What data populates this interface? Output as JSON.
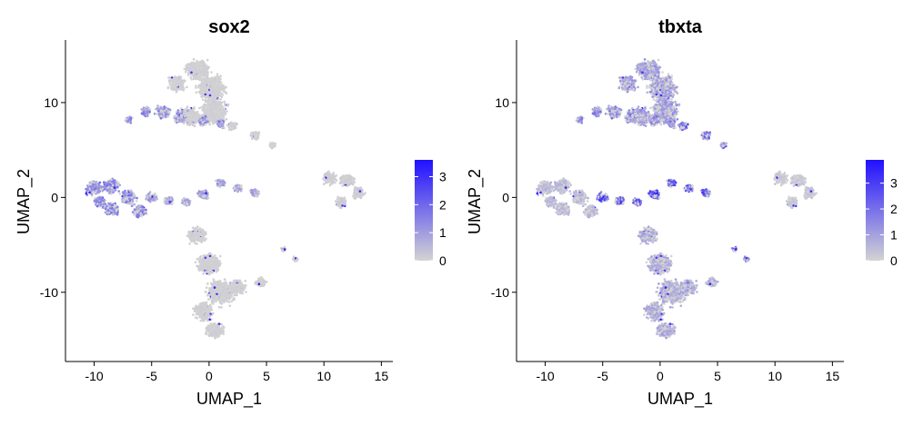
{
  "chart_data": [
    {
      "type": "scatter",
      "title": "sox2",
      "xlabel": "UMAP_1",
      "ylabel": "UMAP_2",
      "xlim": [
        -12.5,
        16
      ],
      "ylim": [
        -17.3,
        16.6
      ],
      "x_ticks": [
        -10,
        -5,
        0,
        5,
        10,
        15
      ],
      "y_ticks": [
        10,
        0,
        -10
      ],
      "grid": false,
      "legend": {
        "position": "right",
        "min": 0,
        "max": 3.6,
        "ticks": [
          3,
          2,
          1,
          0
        ],
        "low_color": "#d3d3d3",
        "high_color": "#2010ff"
      },
      "clusters": [
        {
          "name": "top_mass",
          "x": [
            -1.0,
            0.2,
            0.4,
            -1.6,
            -2.8
          ],
          "y": [
            13.5,
            11.5,
            9.0,
            8.5,
            12.0
          ],
          "spread": [
            1.4,
            1.6,
            1.6,
            1.2,
            1.0
          ],
          "level": 0.1
        },
        {
          "name": "top_left_arm",
          "x": [
            -7.0,
            -5.5,
            -4.0,
            -2.5,
            -0.5,
            1.0
          ],
          "y": [
            8.2,
            9.0,
            9.0,
            8.5,
            8.0,
            7.8
          ],
          "spread": [
            0.4,
            0.6,
            0.8,
            0.8,
            0.6,
            0.5
          ],
          "level": 1.4
        },
        {
          "name": "top_right_arm",
          "x": [
            2.0,
            4.0,
            5.5
          ],
          "y": [
            7.5,
            6.5,
            5.5
          ],
          "spread": [
            0.5,
            0.5,
            0.4
          ],
          "level": 0.1
        },
        {
          "name": "left_lobe",
          "x": [
            -10.0,
            -8.5,
            -7.0,
            -8.5,
            -6.0,
            -9.5
          ],
          "y": [
            1.0,
            1.2,
            0.0,
            -1.2,
            -1.5,
            -0.5
          ],
          "spread": [
            0.9,
            0.9,
            0.9,
            0.8,
            0.8,
            0.7
          ],
          "level": 1.5
        },
        {
          "name": "neck",
          "x": [
            -5.0,
            -3.5,
            -2.0,
            -0.5,
            1.0,
            2.5,
            4.0
          ],
          "y": [
            0.0,
            -0.3,
            -0.5,
            0.3,
            1.5,
            1.0,
            0.5
          ],
          "spread": [
            0.6,
            0.5,
            0.5,
            0.6,
            0.5,
            0.5,
            0.5
          ],
          "level": 1.0
        },
        {
          "name": "right_cluster",
          "x": [
            10.5,
            12.0,
            13.0,
            11.5
          ],
          "y": [
            2.0,
            1.8,
            0.5,
            -0.5
          ],
          "spread": [
            0.8,
            0.8,
            0.7,
            0.7
          ],
          "level": 0.15
        },
        {
          "name": "lower_body",
          "x": [
            -1.0,
            0.0,
            1.0,
            -0.5,
            0.5,
            2.5,
            4.5
          ],
          "y": [
            -4.0,
            -7.0,
            -10.0,
            -12.0,
            -14.0,
            -9.5,
            -9.0
          ],
          "spread": [
            1.0,
            1.4,
            1.6,
            1.2,
            1.0,
            1.0,
            0.6
          ],
          "level": 0.1
        },
        {
          "name": "small_right",
          "x": [
            6.5,
            7.5
          ],
          "y": [
            -5.5,
            -6.5
          ],
          "spread": [
            0.3,
            0.3
          ],
          "level": 0.1
        }
      ]
    },
    {
      "type": "scatter",
      "title": "tbxta",
      "xlabel": "UMAP_1",
      "ylabel": "UMAP_2",
      "xlim": [
        -12.5,
        16
      ],
      "ylim": [
        -17.3,
        16.6
      ],
      "x_ticks": [
        -10,
        -5,
        0,
        5,
        10,
        15
      ],
      "y_ticks": [
        10,
        0,
        -10
      ],
      "grid": false,
      "legend": {
        "position": "right",
        "min": 0,
        "max": 3.9,
        "ticks": [
          3,
          2,
          1,
          0
        ],
        "low_color": "#d3d3d3",
        "high_color": "#2010ff"
      },
      "clusters": [
        {
          "name": "top_mass",
          "x": [
            -1.0,
            0.2,
            0.4,
            -1.6,
            -2.8
          ],
          "y": [
            13.5,
            11.5,
            9.0,
            8.5,
            12.0
          ],
          "spread": [
            1.4,
            1.6,
            1.6,
            1.2,
            1.0
          ],
          "level": 1.2
        },
        {
          "name": "top_left_arm",
          "x": [
            -7.0,
            -5.5,
            -4.0,
            -2.5,
            -0.5,
            1.0
          ],
          "y": [
            8.2,
            9.0,
            9.0,
            8.5,
            8.0,
            7.8
          ],
          "spread": [
            0.4,
            0.6,
            0.8,
            0.8,
            0.6,
            0.5
          ],
          "level": 1.6
        },
        {
          "name": "top_right_arm",
          "x": [
            2.0,
            4.0,
            5.5
          ],
          "y": [
            7.5,
            6.5,
            5.5
          ],
          "spread": [
            0.5,
            0.5,
            0.4
          ],
          "level": 2.2
        },
        {
          "name": "left_lobe",
          "x": [
            -10.0,
            -8.5,
            -7.0,
            -8.5,
            -6.0,
            -9.5
          ],
          "y": [
            1.0,
            1.2,
            0.0,
            -1.2,
            -1.5,
            -0.5
          ],
          "spread": [
            0.9,
            0.9,
            0.9,
            0.8,
            0.8,
            0.7
          ],
          "level": 0.6
        },
        {
          "name": "neck",
          "x": [
            -5.0,
            -3.5,
            -2.0,
            -0.5,
            1.0,
            2.5,
            4.0
          ],
          "y": [
            0.0,
            -0.3,
            -0.5,
            0.3,
            1.5,
            1.0,
            0.5
          ],
          "spread": [
            0.6,
            0.5,
            0.5,
            0.6,
            0.5,
            0.5,
            0.5
          ],
          "level": 2.6
        },
        {
          "name": "right_cluster",
          "x": [
            10.5,
            12.0,
            13.0,
            11.5
          ],
          "y": [
            2.0,
            1.8,
            0.5,
            -0.5
          ],
          "spread": [
            0.8,
            0.8,
            0.7,
            0.7
          ],
          "level": 0.3
        },
        {
          "name": "lower_body",
          "x": [
            -1.0,
            0.0,
            1.0,
            -0.5,
            0.5,
            2.5,
            4.5
          ],
          "y": [
            -4.0,
            -7.0,
            -10.0,
            -12.0,
            -14.0,
            -9.5,
            -9.0
          ],
          "spread": [
            1.0,
            1.4,
            1.6,
            1.2,
            1.0,
            1.0,
            0.6
          ],
          "level": 0.9
        },
        {
          "name": "small_right",
          "x": [
            6.5,
            7.5
          ],
          "y": [
            -5.5,
            -6.5
          ],
          "spread": [
            0.3,
            0.3
          ],
          "level": 1.8
        }
      ]
    }
  ]
}
